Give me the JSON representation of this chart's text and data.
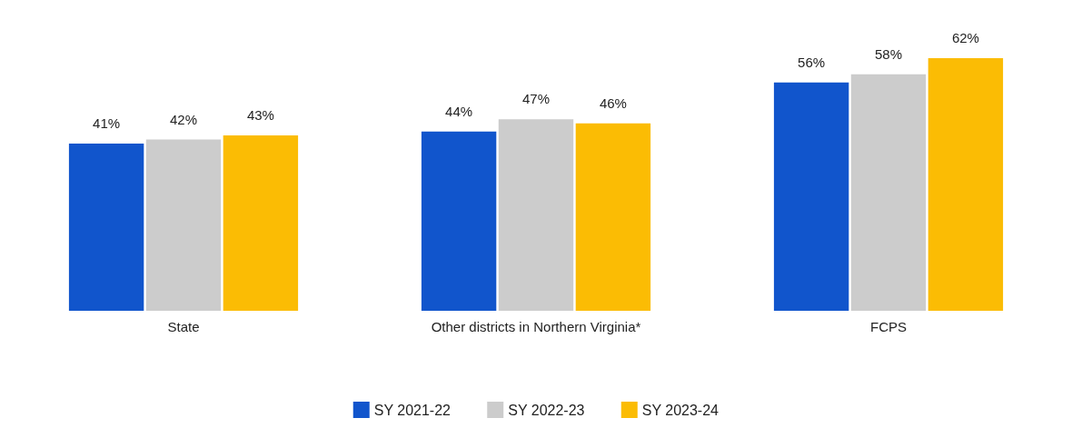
{
  "chart_data": {
    "type": "bar",
    "categories": [
      "State",
      "Other districts in Northern Virginia*",
      "FCPS"
    ],
    "series": [
      {
        "name": "SY 2021-22",
        "color": "#1155cc",
        "values": [
          41,
          44,
          56
        ],
        "value_labels": [
          "41%",
          "44%",
          "56%"
        ]
      },
      {
        "name": "SY 2022-23",
        "color": "#cccccc",
        "values": [
          42,
          47,
          58
        ],
        "value_labels": [
          "42%",
          "47%",
          "58%"
        ]
      },
      {
        "name": "SY 2023-24",
        "color": "#fbbc04",
        "values": [
          43,
          46,
          62
        ],
        "value_labels": [
          "43%",
          "46%",
          "62%"
        ]
      }
    ],
    "legend": "bottom"
  }
}
